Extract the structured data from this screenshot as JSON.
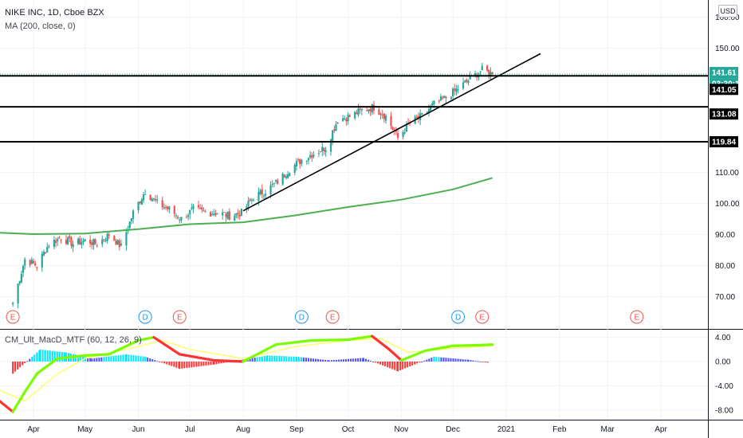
{
  "header": {
    "title": "NIKE INC, 1D, Cboe BZX",
    "ma_label": "MA (200, close, 0)",
    "indicator_label": "CM_Ult_MacD_MTF (60, 12, 26, 9)",
    "currency": "USD"
  },
  "colors": {
    "up": "#26a69a",
    "down": "#ef5350",
    "ma": "#4caf50",
    "trendline": "#000000",
    "macd_up": "#7cfc00",
    "macd_down": "#ff3333",
    "signal": "#ffff66",
    "hist_pos": "#00e5ff",
    "hist_pos_weak": "#5050ff",
    "hist_neg": "#ff3333",
    "earnings": "#ef5350",
    "dividend": "#2196f3",
    "price_badge": "#26a69a"
  },
  "chart_data": [
    {
      "type": "candlestick",
      "title": "NIKE INC, 1D, Cboe BZX",
      "y_axis_ticks": [
        70,
        80,
        90,
        100,
        110,
        150,
        160
      ],
      "y_axis_tick_labels": [
        "70.00",
        "80.00",
        "90.00",
        "100.00",
        "110.00",
        "150.00",
        "160.00"
      ],
      "ylim": [
        63,
        162
      ],
      "x_axis_labels": [
        "Apr",
        "May",
        "Jun",
        "Jul",
        "Aug",
        "Sep",
        "Oct",
        "Nov",
        "Dec",
        "2021",
        "Feb",
        "Mar",
        "Apr"
      ],
      "x_axis_dates": [
        "2020-04-01",
        "2020-05-01",
        "2020-06-01",
        "2020-07-01",
        "2020-08-01",
        "2020-09-01",
        "2020-10-01",
        "2020-11-01",
        "2020-12-01",
        "2021-01-01",
        "2021-02-01",
        "2021-03-01",
        "2021-04-01"
      ],
      "close_series": [
        {
          "date": "2020-03-20",
          "close": 68
        },
        {
          "date": "2020-03-27",
          "close": 82
        },
        {
          "date": "2020-04-03",
          "close": 80
        },
        {
          "date": "2020-04-10",
          "close": 87
        },
        {
          "date": "2020-04-17",
          "close": 89
        },
        {
          "date": "2020-04-24",
          "close": 87
        },
        {
          "date": "2020-05-01",
          "close": 88
        },
        {
          "date": "2020-05-08",
          "close": 87
        },
        {
          "date": "2020-05-15",
          "close": 90
        },
        {
          "date": "2020-05-22",
          "close": 86
        },
        {
          "date": "2020-05-29",
          "close": 97
        },
        {
          "date": "2020-06-05",
          "close": 104
        },
        {
          "date": "2020-06-12",
          "close": 100
        },
        {
          "date": "2020-06-19",
          "close": 98
        },
        {
          "date": "2020-06-26",
          "close": 95
        },
        {
          "date": "2020-07-03",
          "close": 98
        },
        {
          "date": "2020-07-10",
          "close": 97
        },
        {
          "date": "2020-07-17",
          "close": 97
        },
        {
          "date": "2020-07-24",
          "close": 96
        },
        {
          "date": "2020-07-31",
          "close": 97
        },
        {
          "date": "2020-08-07",
          "close": 102
        },
        {
          "date": "2020-08-14",
          "close": 104
        },
        {
          "date": "2020-08-21",
          "close": 107
        },
        {
          "date": "2020-08-28",
          "close": 111
        },
        {
          "date": "2020-09-04",
          "close": 114
        },
        {
          "date": "2020-09-11",
          "close": 116
        },
        {
          "date": "2020-09-18",
          "close": 118
        },
        {
          "date": "2020-09-25",
          "close": 127
        },
        {
          "date": "2020-10-02",
          "close": 128
        },
        {
          "date": "2020-10-09",
          "close": 130
        },
        {
          "date": "2020-10-16",
          "close": 131
        },
        {
          "date": "2020-10-23",
          "close": 128
        },
        {
          "date": "2020-10-30",
          "close": 121
        },
        {
          "date": "2020-11-06",
          "close": 126
        },
        {
          "date": "2020-11-13",
          "close": 128
        },
        {
          "date": "2020-11-20",
          "close": 132
        },
        {
          "date": "2020-11-27",
          "close": 134
        },
        {
          "date": "2020-12-04",
          "close": 137
        },
        {
          "date": "2020-12-11",
          "close": 140
        },
        {
          "date": "2020-12-18",
          "close": 143
        },
        {
          "date": "2020-12-24",
          "close": 141.61
        }
      ],
      "moving_average": {
        "name": "MA (200, close, 0)",
        "points": [
          {
            "date": "2020-03-10",
            "value": 90.6
          },
          {
            "date": "2020-04-01",
            "value": 90.1
          },
          {
            "date": "2020-05-01",
            "value": 90.3
          },
          {
            "date": "2020-06-01",
            "value": 91.7
          },
          {
            "date": "2020-07-01",
            "value": 93.3
          },
          {
            "date": "2020-08-01",
            "value": 93.9
          },
          {
            "date": "2020-09-01",
            "value": 96.2
          },
          {
            "date": "2020-10-01",
            "value": 98.8
          },
          {
            "date": "2020-11-01",
            "value": 101.2
          },
          {
            "date": "2020-12-01",
            "value": 104.5
          },
          {
            "date": "2020-12-24",
            "value": 108.2
          }
        ]
      },
      "trendline": [
        {
          "date": "2020-08-01",
          "value": 97.6
        },
        {
          "date": "2021-01-21",
          "value": 148.2
        }
      ],
      "horizontal_levels": [
        141.05,
        131.08,
        119.84
      ],
      "price_labels": [
        "141.61",
        "03:30:11",
        "141.05",
        "131.08",
        "119.84"
      ],
      "events": [
        {
          "date": "2020-03-20",
          "label": "E"
        },
        {
          "date": "2020-06-05",
          "label": "D"
        },
        {
          "date": "2020-06-25",
          "label": "E"
        },
        {
          "date": "2020-09-04",
          "label": "D"
        },
        {
          "date": "2020-09-22",
          "label": "E"
        },
        {
          "date": "2020-12-04",
          "label": "D"
        },
        {
          "date": "2020-12-18",
          "label": "E"
        },
        {
          "date": "2021-03-18",
          "label": "E"
        }
      ]
    },
    {
      "type": "line",
      "title": "CM_Ult_MacD_MTF (60, 12, 26, 9)",
      "y_axis_ticks": [
        4,
        0,
        -4,
        -8
      ],
      "y_axis_tick_labels": [
        "4.00",
        "0.00",
        "-4.00",
        "-8.00"
      ],
      "ylim": [
        -9,
        5
      ],
      "series": [
        {
          "name": "MACD",
          "points": [
            {
              "date": "2020-03-10",
              "value": -6.0
            },
            {
              "date": "2020-03-20",
              "value": -8.3
            },
            {
              "date": "2020-03-27",
              "value": -5.0
            },
            {
              "date": "2020-04-03",
              "value": -2.0
            },
            {
              "date": "2020-04-15",
              "value": 0.5
            },
            {
              "date": "2020-05-01",
              "value": 1.0
            },
            {
              "date": "2020-05-15",
              "value": 1.2
            },
            {
              "date": "2020-06-01",
              "value": 3.5
            },
            {
              "date": "2020-06-10",
              "value": 4.0
            },
            {
              "date": "2020-06-25",
              "value": 1.2
            },
            {
              "date": "2020-07-15",
              "value": 0.2
            },
            {
              "date": "2020-08-01",
              "value": 0.0
            },
            {
              "date": "2020-08-20",
              "value": 2.8
            },
            {
              "date": "2020-09-10",
              "value": 3.5
            },
            {
              "date": "2020-10-01",
              "value": 3.6
            },
            {
              "date": "2020-10-15",
              "value": 4.2
            },
            {
              "date": "2020-10-25",
              "value": 2.0
            },
            {
              "date": "2020-11-01",
              "value": 0.2
            },
            {
              "date": "2020-11-15",
              "value": 1.8
            },
            {
              "date": "2020-12-01",
              "value": 2.6
            },
            {
              "date": "2020-12-15",
              "value": 2.7
            },
            {
              "date": "2020-12-24",
              "value": 2.8
            }
          ]
        },
        {
          "name": "Signal",
          "points": [
            {
              "date": "2020-03-10",
              "value": -4.5
            },
            {
              "date": "2020-03-27",
              "value": -6.5
            },
            {
              "date": "2020-04-15",
              "value": -2.0
            },
            {
              "date": "2020-05-01",
              "value": 0.5
            },
            {
              "date": "2020-06-01",
              "value": 2.5
            },
            {
              "date": "2020-06-15",
              "value": 3.5
            },
            {
              "date": "2020-07-01",
              "value": 2.0
            },
            {
              "date": "2020-08-01",
              "value": 0.5
            },
            {
              "date": "2020-09-01",
              "value": 2.5
            },
            {
              "date": "2020-10-01",
              "value": 3.5
            },
            {
              "date": "2020-10-20",
              "value": 3.8
            },
            {
              "date": "2020-11-05",
              "value": 1.5
            },
            {
              "date": "2020-12-01",
              "value": 2.2
            },
            {
              "date": "2020-12-24",
              "value": 2.6
            }
          ]
        }
      ],
      "histogram": [
        {
          "date": "2020-03-20",
          "value": -2.0
        },
        {
          "date": "2020-04-05",
          "value": 2.0
        },
        {
          "date": "2020-04-20",
          "value": 1.5
        },
        {
          "date": "2020-05-05",
          "value": 0.5
        },
        {
          "date": "2020-05-25",
          "value": 1.2
        },
        {
          "date": "2020-06-05",
          "value": 0.8
        },
        {
          "date": "2020-06-25",
          "value": -1.2
        },
        {
          "date": "2020-07-15",
          "value": -0.5
        },
        {
          "date": "2020-08-15",
          "value": 1.0
        },
        {
          "date": "2020-09-01",
          "value": 0.8
        },
        {
          "date": "2020-09-20",
          "value": 0.2
        },
        {
          "date": "2020-10-10",
          "value": 0.6
        },
        {
          "date": "2020-10-30",
          "value": -1.6
        },
        {
          "date": "2020-11-20",
          "value": 0.8
        },
        {
          "date": "2020-12-10",
          "value": 0.3
        },
        {
          "date": "2020-12-22",
          "value": -0.2
        }
      ]
    }
  ]
}
